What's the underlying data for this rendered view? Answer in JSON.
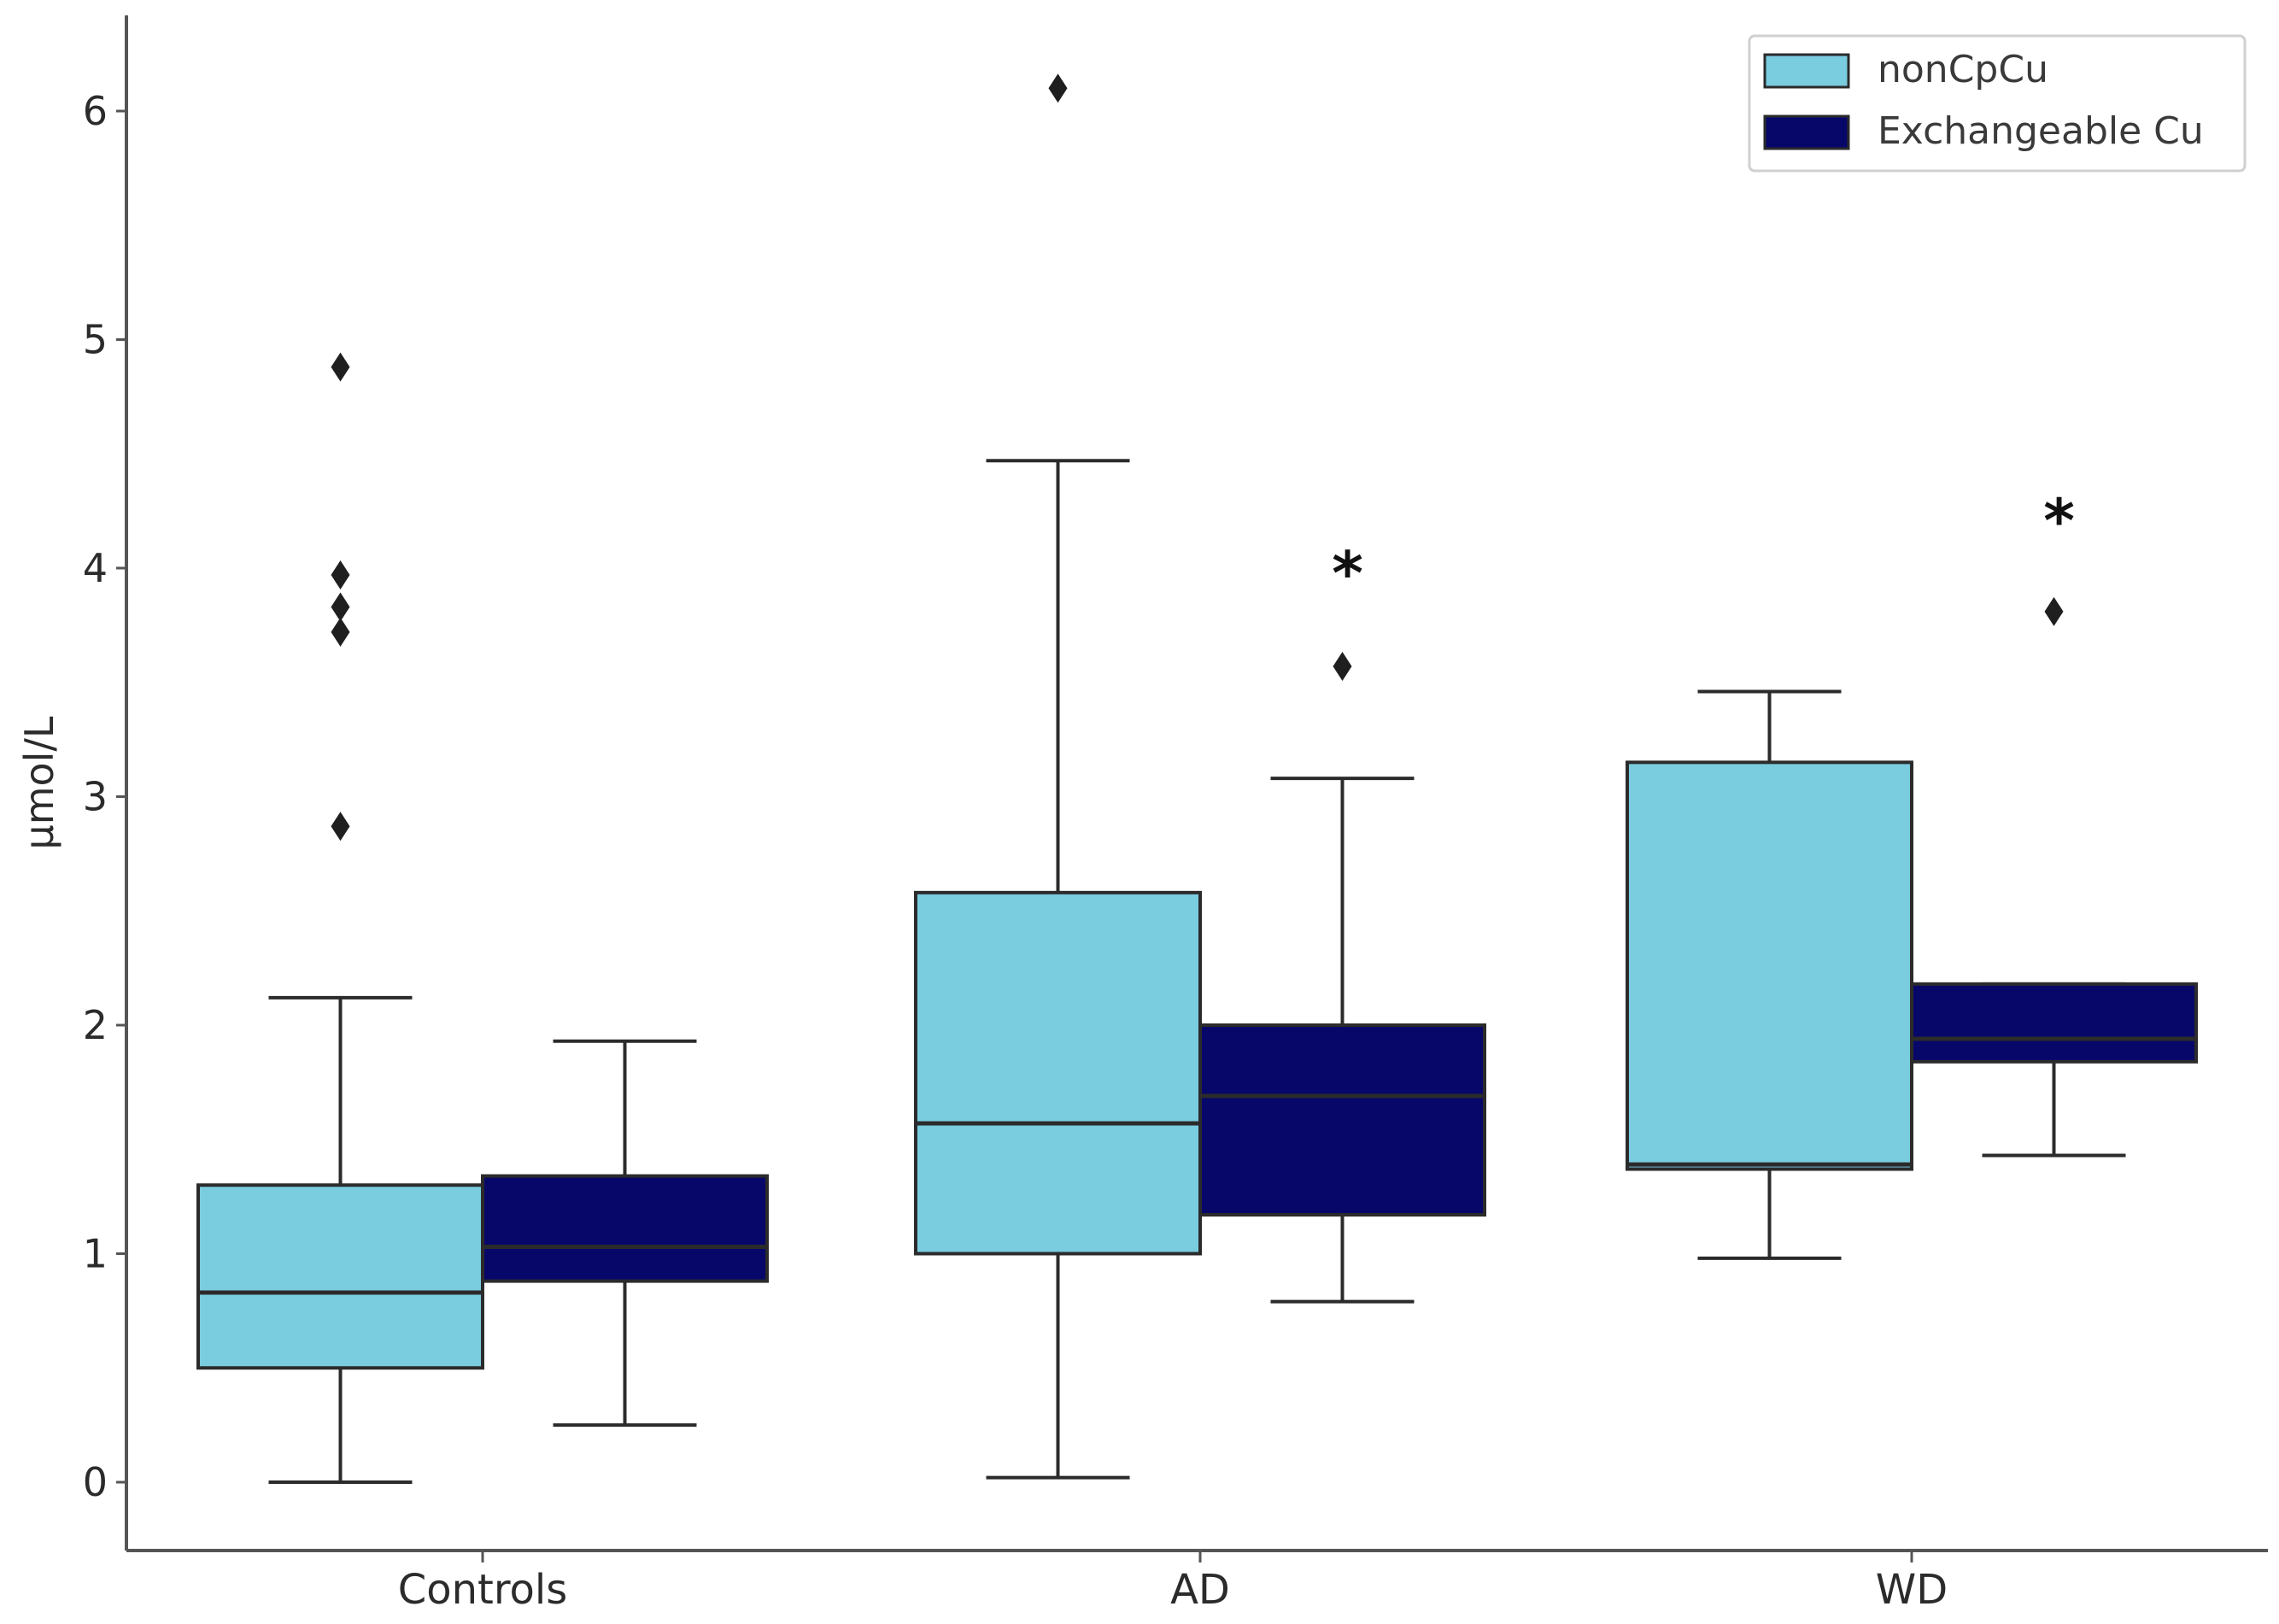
{
  "chart_data": {
    "type": "boxplot",
    "title": "",
    "xlabel": "",
    "ylabel": "µmol/L",
    "ylim": [
      -0.3,
      6.5
    ],
    "yticks": [
      "0",
      "1",
      "2",
      "3",
      "4",
      "5",
      "6"
    ],
    "categories": [
      "Controls",
      "AD",
      "WD"
    ],
    "legend": {
      "position": "top-right",
      "entries": [
        "nonCpCu",
        "Exchangeable Cu"
      ]
    },
    "colors": {
      "nonCpCu": "#7accdf",
      "Exchangeable Cu": "#07076a",
      "edge": "#2b2b2b",
      "axis": "#555555"
    },
    "series": [
      {
        "name": "nonCpCu",
        "boxes": [
          {
            "category": "Controls",
            "whislo": 0.0,
            "q1": 0.5,
            "med": 0.83,
            "q3": 1.3,
            "whishi": 2.12,
            "fliers": [
              2.87,
              3.72,
              3.83,
              3.97,
              4.88
            ]
          },
          {
            "category": "AD",
            "whislo": 0.02,
            "q1": 1.0,
            "med": 1.57,
            "q3": 2.58,
            "whishi": 4.47,
            "fliers": [
              6.1
            ]
          },
          {
            "category": "WD",
            "whislo": 0.98,
            "q1": 1.37,
            "med": 1.39,
            "q3": 3.15,
            "whishi": 3.46,
            "fliers": []
          }
        ]
      },
      {
        "name": "Exchangeable Cu",
        "boxes": [
          {
            "category": "Controls",
            "whislo": 0.25,
            "q1": 0.88,
            "med": 1.03,
            "q3": 1.34,
            "whishi": 1.93,
            "fliers": []
          },
          {
            "category": "AD",
            "whislo": 0.79,
            "q1": 1.17,
            "med": 1.69,
            "q3": 2.0,
            "whishi": 3.08,
            "fliers": [
              3.57
            ]
          },
          {
            "category": "WD",
            "whislo": 1.43,
            "q1": 1.84,
            "med": 1.94,
            "q3": 2.18,
            "whishi": 2.18,
            "fliers": [
              3.81
            ]
          }
        ]
      }
    ],
    "annotations": [
      {
        "text": "*",
        "category": "AD",
        "series": "Exchangeable Cu",
        "y": 4.02
      },
      {
        "text": "*",
        "category": "WD",
        "series": "Exchangeable Cu",
        "y": 4.25
      }
    ]
  }
}
